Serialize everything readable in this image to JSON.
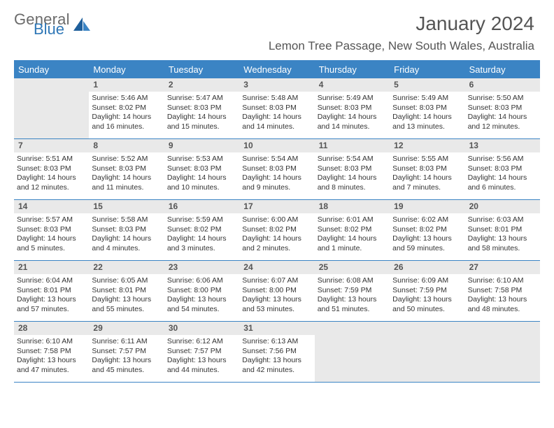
{
  "brand": {
    "line1": "General",
    "line2": "Blue"
  },
  "title": {
    "month": "January 2024",
    "location": "Lemon Tree Passage, New South Wales, Australia"
  },
  "colors": {
    "accent": "#3b84c4",
    "band": "#e9e9e9",
    "text": "#3a3a3a"
  },
  "dow": [
    "Sunday",
    "Monday",
    "Tuesday",
    "Wednesday",
    "Thursday",
    "Friday",
    "Saturday"
  ],
  "weeks": [
    [
      null,
      {
        "n": "1",
        "sr": "5:46 AM",
        "ss": "8:02 PM",
        "dl": "14 hours and 16 minutes."
      },
      {
        "n": "2",
        "sr": "5:47 AM",
        "ss": "8:03 PM",
        "dl": "14 hours and 15 minutes."
      },
      {
        "n": "3",
        "sr": "5:48 AM",
        "ss": "8:03 PM",
        "dl": "14 hours and 14 minutes."
      },
      {
        "n": "4",
        "sr": "5:49 AM",
        "ss": "8:03 PM",
        "dl": "14 hours and 14 minutes."
      },
      {
        "n": "5",
        "sr": "5:49 AM",
        "ss": "8:03 PM",
        "dl": "14 hours and 13 minutes."
      },
      {
        "n": "6",
        "sr": "5:50 AM",
        "ss": "8:03 PM",
        "dl": "14 hours and 12 minutes."
      }
    ],
    [
      {
        "n": "7",
        "sr": "5:51 AM",
        "ss": "8:03 PM",
        "dl": "14 hours and 12 minutes."
      },
      {
        "n": "8",
        "sr": "5:52 AM",
        "ss": "8:03 PM",
        "dl": "14 hours and 11 minutes."
      },
      {
        "n": "9",
        "sr": "5:53 AM",
        "ss": "8:03 PM",
        "dl": "14 hours and 10 minutes."
      },
      {
        "n": "10",
        "sr": "5:54 AM",
        "ss": "8:03 PM",
        "dl": "14 hours and 9 minutes."
      },
      {
        "n": "11",
        "sr": "5:54 AM",
        "ss": "8:03 PM",
        "dl": "14 hours and 8 minutes."
      },
      {
        "n": "12",
        "sr": "5:55 AM",
        "ss": "8:03 PM",
        "dl": "14 hours and 7 minutes."
      },
      {
        "n": "13",
        "sr": "5:56 AM",
        "ss": "8:03 PM",
        "dl": "14 hours and 6 minutes."
      }
    ],
    [
      {
        "n": "14",
        "sr": "5:57 AM",
        "ss": "8:03 PM",
        "dl": "14 hours and 5 minutes."
      },
      {
        "n": "15",
        "sr": "5:58 AM",
        "ss": "8:03 PM",
        "dl": "14 hours and 4 minutes."
      },
      {
        "n": "16",
        "sr": "5:59 AM",
        "ss": "8:02 PM",
        "dl": "14 hours and 3 minutes."
      },
      {
        "n": "17",
        "sr": "6:00 AM",
        "ss": "8:02 PM",
        "dl": "14 hours and 2 minutes."
      },
      {
        "n": "18",
        "sr": "6:01 AM",
        "ss": "8:02 PM",
        "dl": "14 hours and 1 minute."
      },
      {
        "n": "19",
        "sr": "6:02 AM",
        "ss": "8:02 PM",
        "dl": "13 hours and 59 minutes."
      },
      {
        "n": "20",
        "sr": "6:03 AM",
        "ss": "8:01 PM",
        "dl": "13 hours and 58 minutes."
      }
    ],
    [
      {
        "n": "21",
        "sr": "6:04 AM",
        "ss": "8:01 PM",
        "dl": "13 hours and 57 minutes."
      },
      {
        "n": "22",
        "sr": "6:05 AM",
        "ss": "8:01 PM",
        "dl": "13 hours and 55 minutes."
      },
      {
        "n": "23",
        "sr": "6:06 AM",
        "ss": "8:00 PM",
        "dl": "13 hours and 54 minutes."
      },
      {
        "n": "24",
        "sr": "6:07 AM",
        "ss": "8:00 PM",
        "dl": "13 hours and 53 minutes."
      },
      {
        "n": "25",
        "sr": "6:08 AM",
        "ss": "7:59 PM",
        "dl": "13 hours and 51 minutes."
      },
      {
        "n": "26",
        "sr": "6:09 AM",
        "ss": "7:59 PM",
        "dl": "13 hours and 50 minutes."
      },
      {
        "n": "27",
        "sr": "6:10 AM",
        "ss": "7:58 PM",
        "dl": "13 hours and 48 minutes."
      }
    ],
    [
      {
        "n": "28",
        "sr": "6:10 AM",
        "ss": "7:58 PM",
        "dl": "13 hours and 47 minutes."
      },
      {
        "n": "29",
        "sr": "6:11 AM",
        "ss": "7:57 PM",
        "dl": "13 hours and 45 minutes."
      },
      {
        "n": "30",
        "sr": "6:12 AM",
        "ss": "7:57 PM",
        "dl": "13 hours and 44 minutes."
      },
      {
        "n": "31",
        "sr": "6:13 AM",
        "ss": "7:56 PM",
        "dl": "13 hours and 42 minutes."
      },
      null,
      null,
      null
    ]
  ],
  "labels": {
    "sunrise": "Sunrise:",
    "sunset": "Sunset:",
    "daylight": "Daylight:"
  }
}
